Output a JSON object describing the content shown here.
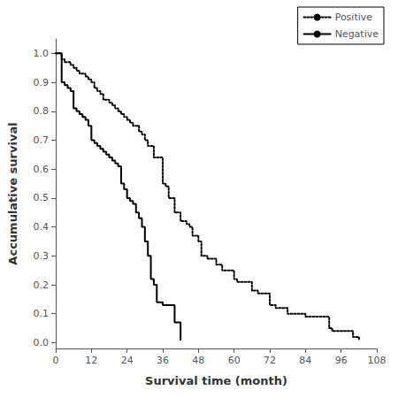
{
  "chart_data": {
    "type": "step",
    "xlabel": "Survival time (month)",
    "ylabel": "Accumulative survival",
    "xlim": [
      0,
      108
    ],
    "ylim": [
      -0.02,
      1.05
    ],
    "xticks": [
      0,
      12,
      24,
      36,
      48,
      60,
      72,
      84,
      96,
      108
    ],
    "yticks": [
      {
        "value": 0.0,
        "label": "0.0"
      },
      0.1,
      0.2,
      0.3,
      0.4,
      0.5,
      0.6,
      0.7,
      0.8,
      0.9,
      {
        "value": 1.0,
        "label": "1.0"
      }
    ],
    "grid": false,
    "legend": "upper right",
    "series": [
      {
        "name": "Positive",
        "color": "#000000",
        "line_style": "dotted",
        "x": [
          0,
          2,
          3,
          5,
          6,
          7,
          8,
          9,
          10,
          11,
          12,
          13,
          14,
          15,
          16,
          18,
          19,
          20,
          21,
          22,
          23,
          24,
          25,
          26,
          28,
          29,
          30,
          31,
          33,
          36,
          37,
          38,
          40,
          42,
          44,
          45,
          46,
          48,
          49,
          51,
          54,
          56,
          57,
          60,
          61,
          63,
          66,
          68,
          72,
          73,
          74,
          78,
          84,
          90,
          92,
          93,
          96,
          100,
          102
        ],
        "values": [
          1.0,
          0.98,
          0.97,
          0.96,
          0.95,
          0.94,
          0.93,
          0.93,
          0.92,
          0.91,
          0.9,
          0.88,
          0.87,
          0.86,
          0.84,
          0.83,
          0.82,
          0.81,
          0.8,
          0.79,
          0.78,
          0.77,
          0.76,
          0.75,
          0.73,
          0.72,
          0.7,
          0.68,
          0.64,
          0.55,
          0.54,
          0.5,
          0.45,
          0.42,
          0.41,
          0.4,
          0.37,
          0.35,
          0.3,
          0.29,
          0.27,
          0.25,
          0.25,
          0.22,
          0.21,
          0.21,
          0.18,
          0.17,
          0.13,
          0.13,
          0.12,
          0.1,
          0.09,
          0.09,
          0.05,
          0.04,
          0.04,
          0.02,
          0.01
        ]
      },
      {
        "name": "Negative",
        "color": "#000000",
        "line_style": "solid",
        "x": [
          0,
          1,
          2,
          3,
          4,
          5,
          6,
          7,
          8,
          9,
          10,
          11,
          12,
          13,
          14,
          15,
          16,
          17,
          18,
          19,
          20,
          21,
          22,
          23,
          24,
          25,
          26,
          27,
          28,
          29,
          30,
          31,
          32,
          33,
          34,
          36,
          40,
          42
        ],
        "values": [
          1.0,
          1.0,
          0.9,
          0.89,
          0.88,
          0.87,
          0.81,
          0.8,
          0.79,
          0.78,
          0.77,
          0.75,
          0.7,
          0.69,
          0.68,
          0.67,
          0.66,
          0.65,
          0.64,
          0.63,
          0.62,
          0.61,
          0.55,
          0.53,
          0.5,
          0.49,
          0.48,
          0.45,
          0.43,
          0.4,
          0.35,
          0.3,
          0.22,
          0.2,
          0.14,
          0.13,
          0.07,
          0.01
        ]
      }
    ]
  }
}
